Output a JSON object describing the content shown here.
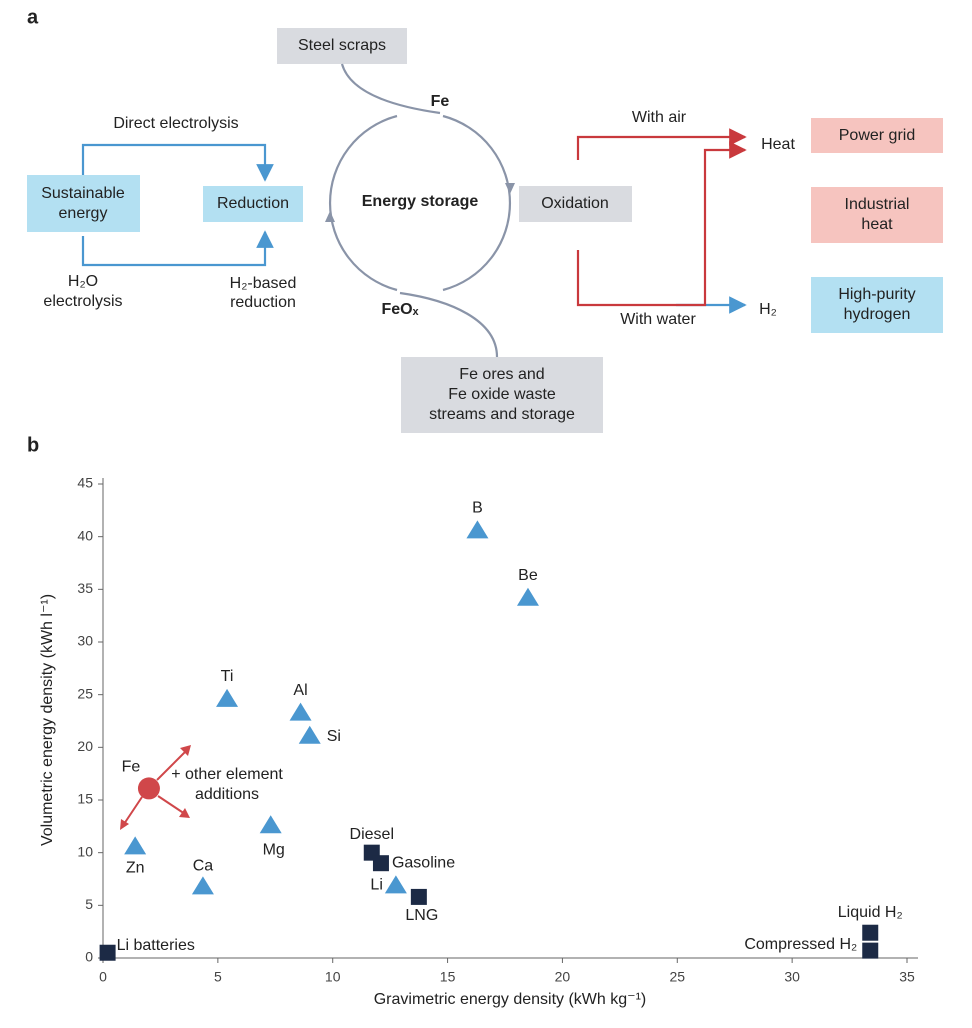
{
  "panel_a": {
    "label": "a",
    "steel_scraps": "Steel scraps",
    "fe": "Fe",
    "direct_electrolysis": "Direct electrolysis",
    "sustainable_energy": [
      "Sustainable",
      "energy"
    ],
    "reduction": "Reduction",
    "energy_storage": "Energy storage",
    "oxidation": "Oxidation",
    "with_air": "With air",
    "heat": "Heat",
    "power_grid": "Power grid",
    "industrial_heat": [
      "Industrial",
      "heat"
    ],
    "high_purity_hydrogen": [
      "High-purity",
      "hydrogen"
    ],
    "h2": "H₂",
    "with_water": "With water",
    "h2o_electrolysis": [
      "H₂O",
      "electrolysis"
    ],
    "h2_based_reduction": [
      "H₂-based",
      "reduction"
    ],
    "feox": "FeOₓ",
    "fe_ores": [
      "Fe ores and",
      "Fe oxide waste",
      "streams and storage"
    ]
  },
  "panel_b_label": "b",
  "chart_data": {
    "type": "scatter",
    "xlabel": "Gravimetric energy density (kWh kg⁻¹)",
    "ylabel": "Volumetric energy density (kWh l⁻¹)",
    "xlim": [
      0,
      35
    ],
    "ylim": [
      0,
      45
    ],
    "xticks": [
      0,
      5,
      10,
      15,
      20,
      25,
      30,
      35
    ],
    "yticks": [
      0,
      5,
      10,
      15,
      20,
      25,
      30,
      35,
      40,
      45
    ],
    "grid": false,
    "annotation": [
      "+ other element",
      "additions"
    ],
    "series": [
      {
        "marker": "triangle",
        "color": "#4a97d0",
        "labels": [
          "B",
          "Be",
          "Ti",
          "Al",
          "Si",
          "Mg",
          "Zn",
          "Ca",
          "Li"
        ],
        "x": [
          16.3,
          18.5,
          5.4,
          8.6,
          9.0,
          7.3,
          1.4,
          4.35,
          12.75
        ],
        "values": [
          40.6,
          34.2,
          24.6,
          23.3,
          21.1,
          12.6,
          10.6,
          6.8,
          6.9
        ]
      },
      {
        "marker": "square",
        "color": "#1c2a45",
        "labels": [
          "Li batteries",
          "Diesel",
          "Gasoline",
          "LNG",
          "Liquid H₂",
          "Compressed H₂"
        ],
        "x": [
          0.2,
          11.7,
          12.1,
          13.75,
          33.4,
          33.4
        ],
        "values": [
          0.5,
          10.0,
          9.0,
          5.8,
          2.4,
          0.7
        ]
      },
      {
        "marker": "circle",
        "color": "#d0474a",
        "labels": [
          "Fe"
        ],
        "x": [
          2.0
        ],
        "values": [
          16.1
        ]
      }
    ]
  }
}
